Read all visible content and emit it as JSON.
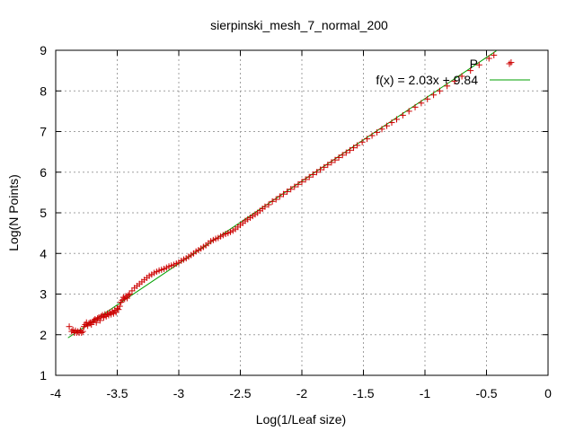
{
  "chart_data": {
    "type": "scatter",
    "title": "sierpinski_mesh_7_normal_200",
    "xlabel": "Log(1/Leaf size)",
    "ylabel": "Log(N Points)",
    "xlim": [
      -4,
      0
    ],
    "ylim": [
      1,
      9
    ],
    "xticks": [
      "-4",
      "-3.5",
      "-3",
      "-2.5",
      "-2",
      "-1.5",
      "-1",
      "-0.5",
      "0"
    ],
    "yticks": [
      "1",
      "2",
      "3",
      "4",
      "5",
      "6",
      "7",
      "8",
      "9"
    ],
    "grid": true,
    "legend_position": "top-right",
    "series": [
      {
        "name": "P",
        "kind": "points",
        "marker": "plus",
        "color": "#cc0000",
        "points": [
          [
            -3.89,
            2.2
          ],
          [
            -3.87,
            2.08
          ],
          [
            -3.86,
            2.12
          ],
          [
            -3.85,
            2.05
          ],
          [
            -3.84,
            2.1
          ],
          [
            -3.83,
            2.05
          ],
          [
            -3.82,
            2.08
          ],
          [
            -3.81,
            2.05
          ],
          [
            -3.8,
            2.1
          ],
          [
            -3.79,
            2.05
          ],
          [
            -3.78,
            2.08
          ],
          [
            -3.77,
            2.2
          ],
          [
            -3.76,
            2.25
          ],
          [
            -3.75,
            2.3
          ],
          [
            -3.74,
            2.22
          ],
          [
            -3.73,
            2.28
          ],
          [
            -3.72,
            2.3
          ],
          [
            -3.71,
            2.25
          ],
          [
            -3.7,
            2.32
          ],
          [
            -3.69,
            2.35
          ],
          [
            -3.68,
            2.38
          ],
          [
            -3.67,
            2.3
          ],
          [
            -3.66,
            2.4
          ],
          [
            -3.65,
            2.42
          ],
          [
            -3.64,
            2.35
          ],
          [
            -3.63,
            2.45
          ],
          [
            -3.62,
            2.48
          ],
          [
            -3.61,
            2.42
          ],
          [
            -3.6,
            2.5
          ],
          [
            -3.59,
            2.45
          ],
          [
            -3.58,
            2.52
          ],
          [
            -3.57,
            2.48
          ],
          [
            -3.56,
            2.55
          ],
          [
            -3.55,
            2.5
          ],
          [
            -3.54,
            2.57
          ],
          [
            -3.53,
            2.52
          ],
          [
            -3.52,
            2.6
          ],
          [
            -3.51,
            2.55
          ],
          [
            -3.5,
            2.65
          ],
          [
            -3.49,
            2.62
          ],
          [
            -3.48,
            2.7
          ],
          [
            -3.47,
            2.8
          ],
          [
            -3.46,
            2.85
          ],
          [
            -3.45,
            2.92
          ],
          [
            -3.44,
            2.88
          ],
          [
            -3.43,
            2.95
          ],
          [
            -3.42,
            2.9
          ],
          [
            -3.41,
            2.97
          ],
          [
            -3.4,
            3.0
          ],
          [
            -3.38,
            3.08
          ],
          [
            -3.36,
            3.15
          ],
          [
            -3.34,
            3.2
          ],
          [
            -3.32,
            3.25
          ],
          [
            -3.3,
            3.3
          ],
          [
            -3.28,
            3.35
          ],
          [
            -3.26,
            3.4
          ],
          [
            -3.24,
            3.45
          ],
          [
            -3.22,
            3.48
          ],
          [
            -3.2,
            3.52
          ],
          [
            -3.18,
            3.55
          ],
          [
            -3.16,
            3.58
          ],
          [
            -3.14,
            3.6
          ],
          [
            -3.12,
            3.62
          ],
          [
            -3.1,
            3.65
          ],
          [
            -3.08,
            3.68
          ],
          [
            -3.06,
            3.7
          ],
          [
            -3.04,
            3.72
          ],
          [
            -3.02,
            3.75
          ],
          [
            -3.0,
            3.78
          ],
          [
            -2.98,
            3.82
          ],
          [
            -2.96,
            3.85
          ],
          [
            -2.94,
            3.88
          ],
          [
            -2.92,
            3.92
          ],
          [
            -2.9,
            3.96
          ],
          [
            -2.88,
            4.0
          ],
          [
            -2.86,
            4.05
          ],
          [
            -2.84,
            4.08
          ],
          [
            -2.82,
            4.12
          ],
          [
            -2.8,
            4.16
          ],
          [
            -2.78,
            4.2
          ],
          [
            -2.76,
            4.25
          ],
          [
            -2.74,
            4.3
          ],
          [
            -2.72,
            4.33
          ],
          [
            -2.7,
            4.36
          ],
          [
            -2.68,
            4.38
          ],
          [
            -2.66,
            4.42
          ],
          [
            -2.64,
            4.45
          ],
          [
            -2.62,
            4.48
          ],
          [
            -2.6,
            4.5
          ],
          [
            -2.58,
            4.53
          ],
          [
            -2.56,
            4.56
          ],
          [
            -2.54,
            4.6
          ],
          [
            -2.52,
            4.65
          ],
          [
            -2.5,
            4.7
          ],
          [
            -2.48,
            4.75
          ],
          [
            -2.46,
            4.8
          ],
          [
            -2.44,
            4.84
          ],
          [
            -2.42,
            4.88
          ],
          [
            -2.4,
            4.92
          ],
          [
            -2.38,
            4.96
          ],
          [
            -2.36,
            5.0
          ],
          [
            -2.34,
            5.05
          ],
          [
            -2.32,
            5.1
          ],
          [
            -2.3,
            5.15
          ],
          [
            -2.27,
            5.2
          ],
          [
            -2.24,
            5.28
          ],
          [
            -2.21,
            5.33
          ],
          [
            -2.18,
            5.4
          ],
          [
            -2.15,
            5.46
          ],
          [
            -2.12,
            5.52
          ],
          [
            -2.09,
            5.58
          ],
          [
            -2.06,
            5.64
          ],
          [
            -2.03,
            5.7
          ],
          [
            -2.0,
            5.76
          ],
          [
            -1.97,
            5.82
          ],
          [
            -1.94,
            5.88
          ],
          [
            -1.91,
            5.94
          ],
          [
            -1.88,
            6.0
          ],
          [
            -1.85,
            6.06
          ],
          [
            -1.82,
            6.12
          ],
          [
            -1.79,
            6.18
          ],
          [
            -1.76,
            6.24
          ],
          [
            -1.73,
            6.3
          ],
          [
            -1.7,
            6.36
          ],
          [
            -1.67,
            6.42
          ],
          [
            -1.64,
            6.48
          ],
          [
            -1.61,
            6.54
          ],
          [
            -1.58,
            6.6
          ],
          [
            -1.55,
            6.66
          ],
          [
            -1.51,
            6.74
          ],
          [
            -1.47,
            6.82
          ],
          [
            -1.43,
            6.9
          ],
          [
            -1.39,
            6.98
          ],
          [
            -1.35,
            7.06
          ],
          [
            -1.31,
            7.14
          ],
          [
            -1.27,
            7.22
          ],
          [
            -1.23,
            7.3
          ],
          [
            -1.18,
            7.4
          ],
          [
            -1.13,
            7.5
          ],
          [
            -1.08,
            7.6
          ],
          [
            -1.03,
            7.7
          ],
          [
            -0.98,
            7.8
          ],
          [
            -0.93,
            7.9
          ],
          [
            -0.88,
            8.0
          ],
          [
            -0.82,
            8.12
          ],
          [
            -0.76,
            8.24
          ],
          [
            -0.7,
            8.36
          ],
          [
            -0.63,
            8.5
          ],
          [
            -0.56,
            8.64
          ],
          [
            -0.48,
            8.8
          ],
          [
            -0.44,
            8.88
          ],
          [
            -0.3,
            8.7
          ]
        ]
      },
      {
        "name": "f(x) = 2.03x + 9.84",
        "kind": "line",
        "color": "#00a000",
        "slope": 2.03,
        "intercept": 9.84,
        "x_range": [
          -3.9,
          -0.42
        ]
      }
    ]
  }
}
